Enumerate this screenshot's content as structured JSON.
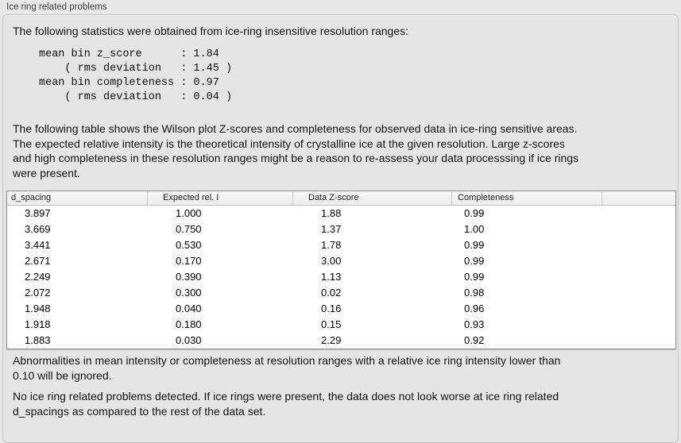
{
  "group": {
    "label": "Ice ring related problems"
  },
  "sections": {
    "intro": "The following statistics were obtained from ice-ring insensitive resolution ranges:",
    "stats": "mean bin z_score      : 1.84\n    ( rms deviation   : 1.45 )\nmean bin completeness : 0.97\n    ( rms deviation   : 0.04 )",
    "table_description": "The following table shows the Wilson plot Z-scores and completeness for observed data in ice-ring sensitive areas.\nThe expected relative intensity is the theoretical intensity of crystalline ice at the given resolution. Large z-scores\nand high completeness in these resolution ranges might be a reason to re-assess your data processsing if ice rings\nwere present.",
    "ignore_note": "Abnormalities in mean intensity or completeness at resolution ranges with a relative ice ring intensity lower than\n0.10 will be ignored.",
    "conclusion": "No ice ring related problems detected. If ice rings were present, the data does not look worse at ice ring related\nd_spacings as compared to the rest of the data set."
  },
  "table": {
    "headers": [
      "d_spacing",
      "Expected rel. I",
      "Data Z-score",
      "Completeness"
    ],
    "rows": [
      [
        "3.897",
        "1.000",
        "1.88",
        "0.99"
      ],
      [
        "3.669",
        "0.750",
        "1.37",
        "1.00"
      ],
      [
        "3.441",
        "0.530",
        "1.78",
        "0.99"
      ],
      [
        "2.671",
        "0.170",
        "3.00",
        "0.99"
      ],
      [
        "2.249",
        "0.390",
        "1.13",
        "0.99"
      ],
      [
        "2.072",
        "0.300",
        "0.02",
        "0.98"
      ],
      [
        "1.948",
        "0.040",
        "0.16",
        "0.96"
      ],
      [
        "1.918",
        "0.180",
        "0.15",
        "0.93"
      ],
      [
        "1.883",
        "0.030",
        "2.29",
        "0.92"
      ]
    ]
  },
  "colors": {
    "window_bg": "#e8e8e8",
    "group_box_bg": "#e5e5e5",
    "table_bg": "#ffffff",
    "table_border": "#8f8f8f",
    "header_bg": "#f2f2f2"
  }
}
